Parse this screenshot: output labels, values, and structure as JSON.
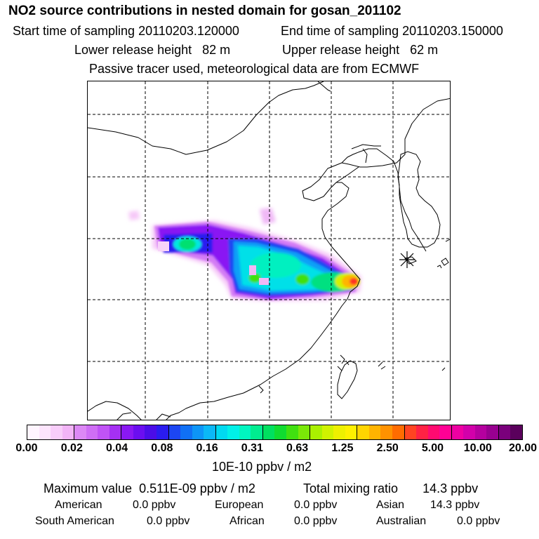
{
  "header": {
    "title": "NO2 source contributions in nested domain for gosan_201102",
    "start_label": "Start time of sampling",
    "start_value": "20110203.120000",
    "end_label": "End time of sampling",
    "end_value": "20110203.150000",
    "lower_label": "Lower release height",
    "lower_value": "82 m",
    "upper_label": "Upper release height",
    "upper_value": "62 m",
    "note": "Passive tracer used, meteorological data are from ECMWF"
  },
  "colorbar": {
    "ticks": [
      "0.00",
      "0.02",
      "0.04",
      "0.08",
      "0.16",
      "0.31",
      "0.63",
      "1.25",
      "2.50",
      "5.00",
      "10.00",
      "20.00"
    ],
    "unit": "10E-10 ppbv / m2",
    "colors": [
      "#fff5ff",
      "#fde5fd",
      "#f8cdfa",
      "#f2b4f7",
      "#dc88f5",
      "#cf6ef5",
      "#c053f6",
      "#a530f3",
      "#8a18f3",
      "#6b0ef0",
      "#4b0de8",
      "#2a1cf0",
      "#1c46f2",
      "#1070f5",
      "#0d95f7",
      "#0bb8f6",
      "#00d9f0",
      "#00f0e8",
      "#00f5c0",
      "#00ec90",
      "#00e060",
      "#10dc30",
      "#40e010",
      "#7ae808",
      "#aaf000",
      "#d0f200",
      "#eef000",
      "#fff000",
      "#ffd500",
      "#ffb400",
      "#ff9200",
      "#ff6c00",
      "#ff4422",
      "#ff2244",
      "#ff0a70",
      "#ff0095",
      "#ee00a2",
      "#d200aa",
      "#b5009f",
      "#980090",
      "#7a007c",
      "#5a005c"
    ]
  },
  "stats": {
    "max_label": "Maximum value",
    "max_value": "0.511E-09 ppbv / m2",
    "total_label": "Total mixing ratio",
    "total_value": "14.3 ppbv",
    "rows": [
      [
        {
          "label": "American",
          "value": "0.0 ppbv"
        },
        {
          "label": "European",
          "value": "0.0 ppbv"
        },
        {
          "label": "Asian",
          "value": "14.3 ppbv"
        }
      ],
      [
        {
          "label": "South American",
          "value": "0.0 ppbv"
        },
        {
          "label": "African",
          "value": "0.0 ppbv"
        },
        {
          "label": "Australian",
          "value": "0.0 ppbv"
        }
      ]
    ]
  }
}
